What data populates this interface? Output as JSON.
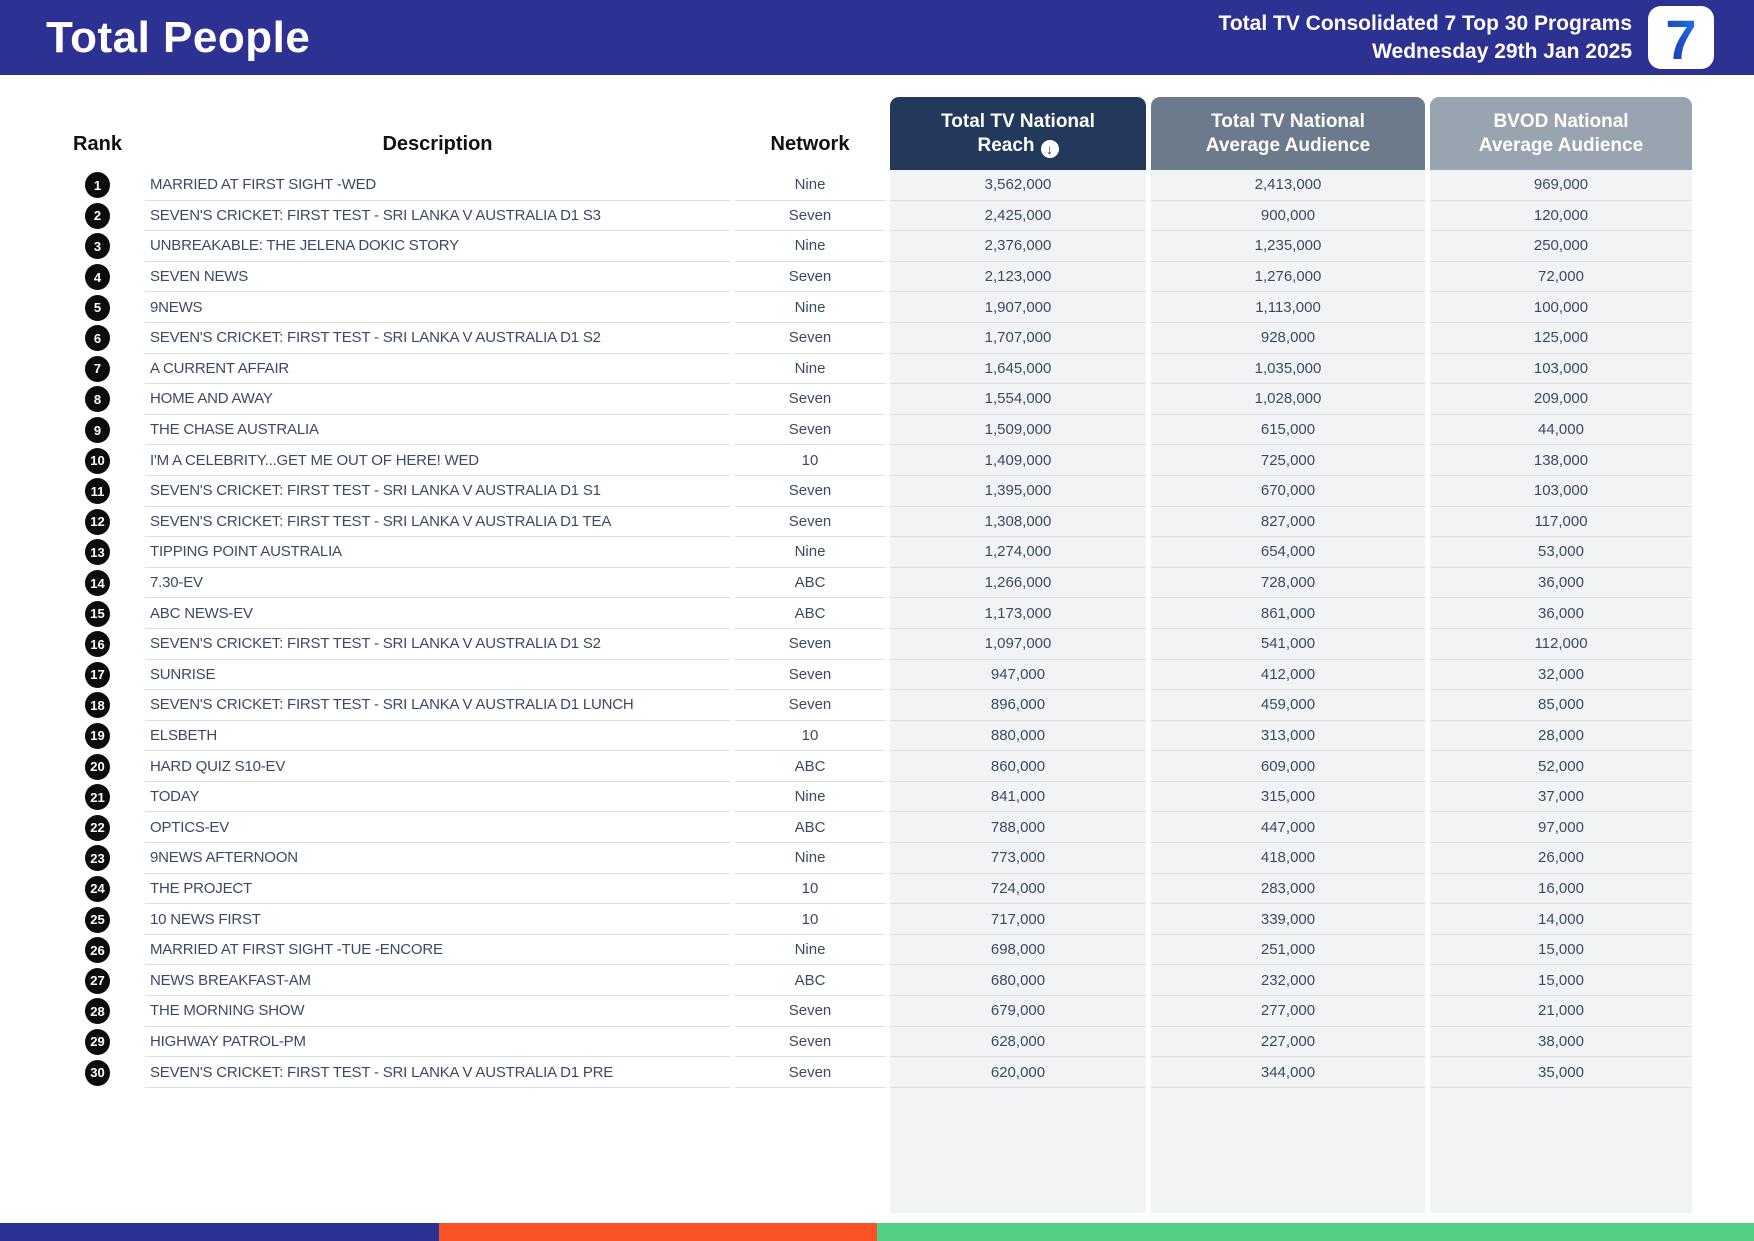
{
  "banner": {
    "title": "Total People",
    "report_line1": "Total TV Consolidated 7 Top 30 Programs",
    "report_line2": "Wednesday 29th Jan 2025",
    "logo": "7"
  },
  "colors": {
    "banner_blue": "#2D3192",
    "reach_header_navy": "#22395B",
    "avg_header_gray": "#6D7A8B",
    "bvod_header_gray": "#9AA3B0",
    "numeric_cell_bg": "#F2F3F5",
    "row_text_navy": "#3B4A64",
    "footer_orange": "#FB5226",
    "footer_green": "#54D086"
  },
  "table": {
    "headers": {
      "rank": "Rank",
      "description": "Description",
      "network": "Network",
      "reach_line1": "Total TV National",
      "reach_line2": "Reach",
      "reach_sort_glyph": "↓",
      "avg_line1": "Total TV National",
      "avg_line2": "Average Audience",
      "bvod_line1": "BVOD National",
      "bvod_line2": "Average Audience"
    },
    "rows": [
      {
        "rank": "1",
        "description": "MARRIED AT FIRST SIGHT -WED",
        "network": "Nine",
        "reach": "3,562,000",
        "avg": "2,413,000",
        "bvod": "969,000"
      },
      {
        "rank": "2",
        "description": "SEVEN'S CRICKET: FIRST TEST - SRI LANKA V AUSTRALIA D1 S3",
        "network": "Seven",
        "reach": "2,425,000",
        "avg": "900,000",
        "bvod": "120,000"
      },
      {
        "rank": "3",
        "description": "UNBREAKABLE: THE JELENA DOKIC STORY",
        "network": "Nine",
        "reach": "2,376,000",
        "avg": "1,235,000",
        "bvod": "250,000"
      },
      {
        "rank": "4",
        "description": "SEVEN NEWS",
        "network": "Seven",
        "reach": "2,123,000",
        "avg": "1,276,000",
        "bvod": "72,000"
      },
      {
        "rank": "5",
        "description": "9NEWS",
        "network": "Nine",
        "reach": "1,907,000",
        "avg": "1,113,000",
        "bvod": "100,000"
      },
      {
        "rank": "6",
        "description": "SEVEN'S CRICKET: FIRST TEST - SRI LANKA V AUSTRALIA D1 S2",
        "network": "Seven",
        "reach": "1,707,000",
        "avg": "928,000",
        "bvod": "125,000"
      },
      {
        "rank": "7",
        "description": "A CURRENT AFFAIR",
        "network": "Nine",
        "reach": "1,645,000",
        "avg": "1,035,000",
        "bvod": "103,000"
      },
      {
        "rank": "8",
        "description": "HOME AND AWAY",
        "network": "Seven",
        "reach": "1,554,000",
        "avg": "1,028,000",
        "bvod": "209,000"
      },
      {
        "rank": "9",
        "description": "THE CHASE AUSTRALIA",
        "network": "Seven",
        "reach": "1,509,000",
        "avg": "615,000",
        "bvod": "44,000"
      },
      {
        "rank": "10",
        "description": "I'M A CELEBRITY...GET ME OUT OF HERE! WED",
        "network": "10",
        "reach": "1,409,000",
        "avg": "725,000",
        "bvod": "138,000"
      },
      {
        "rank": "11",
        "description": "SEVEN'S CRICKET: FIRST TEST - SRI LANKA V AUSTRALIA D1 S1",
        "network": "Seven",
        "reach": "1,395,000",
        "avg": "670,000",
        "bvod": "103,000"
      },
      {
        "rank": "12",
        "description": "SEVEN'S CRICKET: FIRST TEST - SRI LANKA V AUSTRALIA D1 TEA",
        "network": "Seven",
        "reach": "1,308,000",
        "avg": "827,000",
        "bvod": "117,000"
      },
      {
        "rank": "13",
        "description": "TIPPING POINT AUSTRALIA",
        "network": "Nine",
        "reach": "1,274,000",
        "avg": "654,000",
        "bvod": "53,000"
      },
      {
        "rank": "14",
        "description": "7.30-EV",
        "network": "ABC",
        "reach": "1,266,000",
        "avg": "728,000",
        "bvod": "36,000"
      },
      {
        "rank": "15",
        "description": "ABC NEWS-EV",
        "network": "ABC",
        "reach": "1,173,000",
        "avg": "861,000",
        "bvod": "36,000"
      },
      {
        "rank": "16",
        "description": "SEVEN'S CRICKET: FIRST TEST - SRI LANKA V AUSTRALIA D1 S2",
        "network": "Seven",
        "reach": "1,097,000",
        "avg": "541,000",
        "bvod": "112,000"
      },
      {
        "rank": "17",
        "description": "SUNRISE",
        "network": "Seven",
        "reach": "947,000",
        "avg": "412,000",
        "bvod": "32,000"
      },
      {
        "rank": "18",
        "description": "SEVEN'S CRICKET: FIRST TEST - SRI LANKA V AUSTRALIA D1 LUNCH",
        "network": "Seven",
        "reach": "896,000",
        "avg": "459,000",
        "bvod": "85,000"
      },
      {
        "rank": "19",
        "description": "ELSBETH",
        "network": "10",
        "reach": "880,000",
        "avg": "313,000",
        "bvod": "28,000"
      },
      {
        "rank": "20",
        "description": "HARD QUIZ S10-EV",
        "network": "ABC",
        "reach": "860,000",
        "avg": "609,000",
        "bvod": "52,000"
      },
      {
        "rank": "21",
        "description": "TODAY",
        "network": "Nine",
        "reach": "841,000",
        "avg": "315,000",
        "bvod": "37,000"
      },
      {
        "rank": "22",
        "description": "OPTICS-EV",
        "network": "ABC",
        "reach": "788,000",
        "avg": "447,000",
        "bvod": "97,000"
      },
      {
        "rank": "23",
        "description": "9NEWS AFTERNOON",
        "network": "Nine",
        "reach": "773,000",
        "avg": "418,000",
        "bvod": "26,000"
      },
      {
        "rank": "24",
        "description": "THE PROJECT",
        "network": "10",
        "reach": "724,000",
        "avg": "283,000",
        "bvod": "16,000"
      },
      {
        "rank": "25",
        "description": "10 NEWS FIRST",
        "network": "10",
        "reach": "717,000",
        "avg": "339,000",
        "bvod": "14,000"
      },
      {
        "rank": "26",
        "description": "MARRIED AT FIRST SIGHT -TUE -ENCORE",
        "network": "Nine",
        "reach": "698,000",
        "avg": "251,000",
        "bvod": "15,000"
      },
      {
        "rank": "27",
        "description": "NEWS BREAKFAST-AM",
        "network": "ABC",
        "reach": "680,000",
        "avg": "232,000",
        "bvod": "15,000"
      },
      {
        "rank": "28",
        "description": "THE MORNING SHOW",
        "network": "Seven",
        "reach": "679,000",
        "avg": "277,000",
        "bvod": "21,000"
      },
      {
        "rank": "29",
        "description": "HIGHWAY PATROL-PM",
        "network": "Seven",
        "reach": "628,000",
        "avg": "227,000",
        "bvod": "38,000"
      },
      {
        "rank": "30",
        "description": "SEVEN'S CRICKET: FIRST TEST - SRI LANKA V AUSTRALIA D1 PRE",
        "network": "Seven",
        "reach": "620,000",
        "avg": "344,000",
        "bvod": "35,000"
      }
    ]
  },
  "footer_bar": {
    "segments": [
      {
        "name": "blue",
        "color": "#2D3192",
        "width_pct": 25
      },
      {
        "name": "orange",
        "color": "#FB5226",
        "width_pct": 25
      },
      {
        "name": "green",
        "color": "#54D086",
        "width_pct": 50
      }
    ]
  }
}
